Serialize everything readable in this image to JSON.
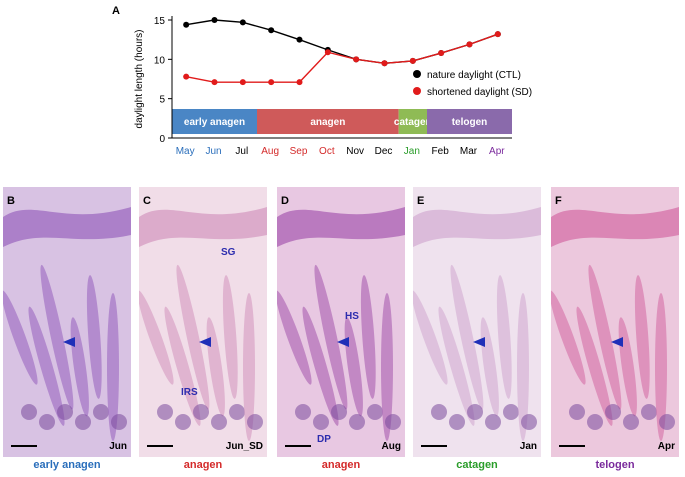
{
  "chart_data": {
    "type": "line",
    "panel_label": "A",
    "ylabel": "daylight length (hours)",
    "ylim": [
      0,
      15
    ],
    "yticks": [
      0,
      5,
      10,
      15
    ],
    "categories": [
      "May",
      "Jun",
      "Jul",
      "Aug",
      "Sep",
      "Oct",
      "Nov",
      "Dec",
      "Jan",
      "Feb",
      "Mar",
      "Apr"
    ],
    "category_colors": [
      "#2a6ebb",
      "#2a6ebb",
      "#000000",
      "#d42a2a",
      "#d42a2a",
      "#d42a2a",
      "#000000",
      "#000000",
      "#2a9d2a",
      "#000000",
      "#000000",
      "#7a2a9c"
    ],
    "series": [
      {
        "name": "nature daylight (CTL)",
        "color": "#000000",
        "values": [
          14.4,
          15.0,
          14.7,
          13.7,
          12.5,
          11.2,
          10.0,
          9.5,
          9.8,
          10.8,
          11.9,
          13.2
        ]
      },
      {
        "name": "shortened daylight (SD)",
        "color": "#e11b1b",
        "values": [
          7.8,
          7.1,
          7.1,
          7.1,
          7.1,
          10.9,
          10.0,
          9.5,
          9.8,
          10.8,
          11.9,
          13.2
        ]
      }
    ],
    "phases": [
      {
        "label": "early anagen",
        "color": "#4a86c5",
        "from": 0,
        "to": 3
      },
      {
        "label": "anagen",
        "color": "#cf5a5a",
        "from": 3,
        "to": 8
      },
      {
        "label": "catagen",
        "color": "#8fbb55",
        "from": 8,
        "to": 9
      },
      {
        "label": "telogen",
        "color": "#8a6aab",
        "from": 9,
        "to": 12
      }
    ],
    "legend_position": "right"
  },
  "panels": [
    {
      "label": "B",
      "tag": "Jun",
      "stage": "early anagen",
      "stage_color": "#2a6ebb",
      "bg": "#d8c2e3",
      "tissue": "#a474c4"
    },
    {
      "label": "C",
      "tag": "Jun_SD",
      "stage": "anagen",
      "stage_color": "#d42a2a",
      "bg": "#f1dde8",
      "tissue": "#d8a2c6",
      "annotations": [
        "SG",
        "IRS"
      ]
    },
    {
      "label": "D",
      "tag": "Aug",
      "stage": "anagen",
      "stage_color": "#d42a2a",
      "bg": "#e8c8e2",
      "tissue": "#b26cb8",
      "annotations": [
        "HS",
        "DP"
      ]
    },
    {
      "label": "E",
      "tag": "Jan",
      "stage": "catagen",
      "stage_color": "#2a9d2a",
      "bg": "#efe2ee",
      "tissue": "#d7b4d6"
    },
    {
      "label": "F",
      "tag": "Apr",
      "stage": "telogen",
      "stage_color": "#7a2a9c",
      "bg": "#ecc8dd",
      "tissue": "#d87aae"
    }
  ]
}
